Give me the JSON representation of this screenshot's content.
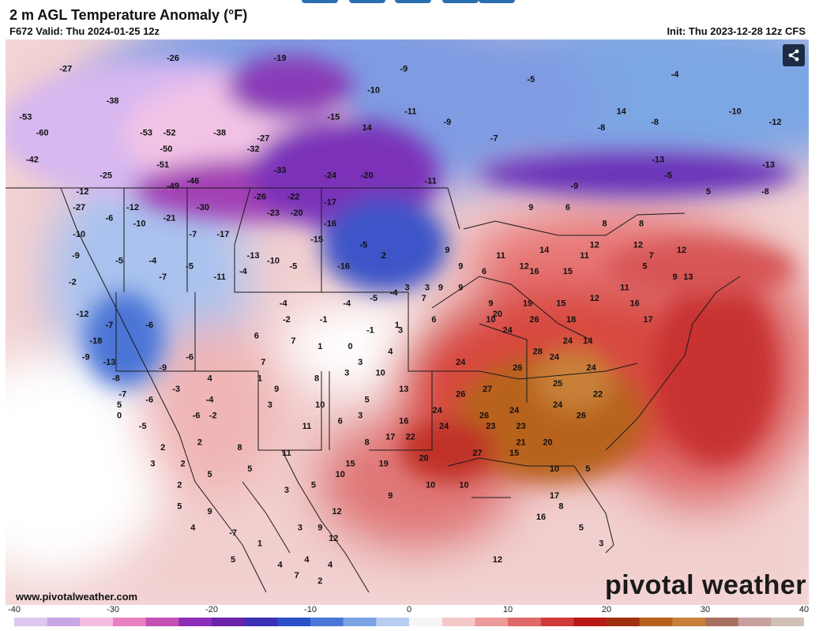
{
  "header": {
    "title": "2 m AGL Temperature Anomaly (°F)",
    "valid": "F672 Valid: Thu 2024-01-25 12z",
    "init": "Init: Thu 2023-12-28 12z CFS"
  },
  "footer": {
    "site": "www.pivotalweather.com",
    "brand": "pivotal weather"
  },
  "share_icon": "share-icon",
  "colorbar": {
    "min": -40,
    "max": 40,
    "tick_labels": [
      "-40",
      "-30",
      "-20",
      "-10",
      "0",
      "10",
      "20",
      "30",
      "40"
    ],
    "colors": [
      "#dcc8ef",
      "#c8a6e6",
      "#f2bde0",
      "#e87fc1",
      "#c64fb4",
      "#8c2fb8",
      "#6a22a8",
      "#3b2fb6",
      "#2c50c8",
      "#4a77d8",
      "#7da3e6",
      "#b7cdf2",
      "#f7f4f4",
      "#f4c8c8",
      "#ec9a9a",
      "#e06a6a",
      "#d23a3a",
      "#b81818",
      "#a03010",
      "#b8601c",
      "#c8803a",
      "#a87060",
      "#c8a0a0",
      "#d0c0b8"
    ]
  },
  "anomaly_labels": [
    {
      "t": "-27",
      "x": -126,
      "y": 50
    },
    {
      "t": "-53",
      "x": -132,
      "y": 45.5
    },
    {
      "t": "-60",
      "x": -129.5,
      "y": 44
    },
    {
      "t": "-42",
      "x": -131,
      "y": 41.5
    },
    {
      "t": "-38",
      "x": -119,
      "y": 47
    },
    {
      "t": "-26",
      "x": -110,
      "y": 51
    },
    {
      "t": "-53",
      "x": -114,
      "y": 44
    },
    {
      "t": "-52",
      "x": -110.5,
      "y": 44
    },
    {
      "t": "-50",
      "x": -111,
      "y": 42.5
    },
    {
      "t": "-51",
      "x": -111.5,
      "y": 41
    },
    {
      "t": "-49",
      "x": -110,
      "y": 39
    },
    {
      "t": "-46",
      "x": -107,
      "y": 39.5
    },
    {
      "t": "-25",
      "x": -120,
      "y": 40
    },
    {
      "t": "-38",
      "x": -103,
      "y": 44
    },
    {
      "t": "-27",
      "x": -96.5,
      "y": 43.5
    },
    {
      "t": "-32",
      "x": -98,
      "y": 42.5
    },
    {
      "t": "-33",
      "x": -94,
      "y": 40.5
    },
    {
      "t": "-19",
      "x": -94,
      "y": 51
    },
    {
      "t": "-24",
      "x": -86.5,
      "y": 40
    },
    {
      "t": "-20",
      "x": -81,
      "y": 40
    },
    {
      "t": "-15",
      "x": -86,
      "y": 45.5
    },
    {
      "t": "14",
      "x": -81,
      "y": 44.5
    },
    {
      "t": "-10",
      "x": -80,
      "y": 48
    },
    {
      "t": "-9",
      "x": -75.5,
      "y": 50
    },
    {
      "t": "-11",
      "x": -74.5,
      "y": 46
    },
    {
      "t": "-9",
      "x": -69,
      "y": 45
    },
    {
      "t": "-7",
      "x": -62,
      "y": 43.5
    },
    {
      "t": "-5",
      "x": -56.5,
      "y": 49
    },
    {
      "t": "-11",
      "x": -71.5,
      "y": 39.5
    },
    {
      "t": "-8",
      "x": -46,
      "y": 44.5
    },
    {
      "t": "-9",
      "x": -50,
      "y": 39
    },
    {
      "t": "-4",
      "x": -35,
      "y": 49.5
    },
    {
      "t": "-10",
      "x": -26,
      "y": 46
    },
    {
      "t": "-12",
      "x": -20,
      "y": 45
    },
    {
      "t": "-13",
      "x": -21,
      "y": 41
    },
    {
      "t": "-13",
      "x": -37.5,
      "y": 41.5
    },
    {
      "t": "14",
      "x": -43,
      "y": 46
    },
    {
      "t": "-8",
      "x": -38,
      "y": 45
    },
    {
      "t": "-5",
      "x": -36,
      "y": 40
    },
    {
      "t": "5",
      "x": -30,
      "y": 38.5
    },
    {
      "t": "-8",
      "x": -21.5,
      "y": 38.5
    },
    {
      "t": "-12",
      "x": -123.5,
      "y": 38.5
    },
    {
      "t": "-27",
      "x": -124,
      "y": 37
    },
    {
      "t": "-12",
      "x": -116,
      "y": 37
    },
    {
      "t": "-6",
      "x": -119.5,
      "y": 36
    },
    {
      "t": "-10",
      "x": -115,
      "y": 35.5
    },
    {
      "t": "-21",
      "x": -110.5,
      "y": 36
    },
    {
      "t": "-30",
      "x": -105.5,
      "y": 37
    },
    {
      "t": "-26",
      "x": -97,
      "y": 38
    },
    {
      "t": "-22",
      "x": -92,
      "y": 38
    },
    {
      "t": "-23",
      "x": -95,
      "y": 36.5
    },
    {
      "t": "-20",
      "x": -91.5,
      "y": 36.5
    },
    {
      "t": "-17",
      "x": -86.5,
      "y": 37.5
    },
    {
      "t": "-16",
      "x": -86.5,
      "y": 35.5
    },
    {
      "t": "-10",
      "x": -124,
      "y": 34.5
    },
    {
      "t": "-7",
      "x": -107,
      "y": 34.5
    },
    {
      "t": "-17",
      "x": -102.5,
      "y": 34.5
    },
    {
      "t": "-15",
      "x": -88.5,
      "y": 34
    },
    {
      "t": "-9",
      "x": -124.5,
      "y": 32.5
    },
    {
      "t": "-5",
      "x": -118,
      "y": 32
    },
    {
      "t": "-4",
      "x": -113,
      "y": 32
    },
    {
      "t": "-5",
      "x": -107.5,
      "y": 31.5
    },
    {
      "t": "-7",
      "x": -111.5,
      "y": 30.5
    },
    {
      "t": "-13",
      "x": -98,
      "y": 32.5
    },
    {
      "t": "-10",
      "x": -95,
      "y": 32
    },
    {
      "t": "-5",
      "x": -92,
      "y": 31.5
    },
    {
      "t": "-16",
      "x": -84.5,
      "y": 31.5
    },
    {
      "t": "-5",
      "x": -81.5,
      "y": 33.5
    },
    {
      "t": "2",
      "x": -78.5,
      "y": 32.5
    },
    {
      "t": "-2",
      "x": -125,
      "y": 30
    },
    {
      "t": "-11",
      "x": -103,
      "y": 30.5
    },
    {
      "t": "-4",
      "x": -99.5,
      "y": 31
    },
    {
      "t": "-12",
      "x": -123.5,
      "y": 27
    },
    {
      "t": "-7",
      "x": -119.5,
      "y": 26
    },
    {
      "t": "-6",
      "x": -113.5,
      "y": 26
    },
    {
      "t": "-18",
      "x": -121.5,
      "y": 24.5
    },
    {
      "t": "-9",
      "x": -123,
      "y": 23
    },
    {
      "t": "-13",
      "x": -119.5,
      "y": 22.5
    },
    {
      "t": "-8",
      "x": -118.5,
      "y": 21
    },
    {
      "t": "-7",
      "x": -117.5,
      "y": 19.5
    },
    {
      "t": "-6",
      "x": -113.5,
      "y": 19
    },
    {
      "t": "-6",
      "x": -107.5,
      "y": 23
    },
    {
      "t": "-9",
      "x": -111.5,
      "y": 22
    },
    {
      "t": "-3",
      "x": -109.5,
      "y": 20
    },
    {
      "t": "-4",
      "x": -104.5,
      "y": 19
    },
    {
      "t": "-2",
      "x": -104,
      "y": 17.5
    },
    {
      "t": "-6",
      "x": -106.5,
      "y": 17.5
    },
    {
      "t": "6",
      "x": -97.5,
      "y": 25
    },
    {
      "t": "-2",
      "x": -93,
      "y": 26.5
    },
    {
      "t": "7",
      "x": -92,
      "y": 24.5
    },
    {
      "t": "-1",
      "x": -87.5,
      "y": 26.5
    },
    {
      "t": "-4",
      "x": -93.5,
      "y": 28
    },
    {
      "t": "-4",
      "x": -84,
      "y": 28
    },
    {
      "t": "-5",
      "x": -80,
      "y": 28.5
    },
    {
      "t": "-4",
      "x": -77,
      "y": 29
    },
    {
      "t": "3",
      "x": -75,
      "y": 29.5
    },
    {
      "t": "-1",
      "x": -80.5,
      "y": 25.5
    },
    {
      "t": "3",
      "x": -76,
      "y": 25.5
    },
    {
      "t": "1",
      "x": -76.5,
      "y": 26
    },
    {
      "t": "1",
      "x": -88,
      "y": 24
    },
    {
      "t": "0",
      "x": -83.5,
      "y": 24
    },
    {
      "t": "4",
      "x": -77.5,
      "y": 23.5
    },
    {
      "t": "7",
      "x": -96.5,
      "y": 22.5
    },
    {
      "t": "4",
      "x": -104.5,
      "y": 21
    },
    {
      "t": "1",
      "x": -97,
      "y": 21
    },
    {
      "t": "9",
      "x": -94.5,
      "y": 20
    },
    {
      "t": "3",
      "x": -95.5,
      "y": 18.5
    },
    {
      "t": "8",
      "x": -88.5,
      "y": 21
    },
    {
      "t": "3",
      "x": -84,
      "y": 21.5
    },
    {
      "t": "3",
      "x": -82,
      "y": 22.5
    },
    {
      "t": "10",
      "x": -79,
      "y": 21.5
    },
    {
      "t": "13",
      "x": -75.5,
      "y": 20
    },
    {
      "t": "10",
      "x": -88,
      "y": 18.5
    },
    {
      "t": "6",
      "x": -85,
      "y": 17
    },
    {
      "t": "3",
      "x": -82,
      "y": 17.5
    },
    {
      "t": "5",
      "x": -81,
      "y": 19
    },
    {
      "t": "11",
      "x": -90,
      "y": 16.5
    },
    {
      "t": "8",
      "x": -81,
      "y": 15
    },
    {
      "t": "11",
      "x": -93,
      "y": 14
    },
    {
      "t": "8",
      "x": -100,
      "y": 14.5
    },
    {
      "t": "2",
      "x": -106,
      "y": 15
    },
    {
      "t": "2",
      "x": -108.5,
      "y": 13
    },
    {
      "t": "5",
      "x": -98.5,
      "y": 12.5
    },
    {
      "t": "17",
      "x": -77.5,
      "y": 15.5
    },
    {
      "t": "22",
      "x": -74.5,
      "y": 15.5
    },
    {
      "t": "16",
      "x": -75.5,
      "y": 17
    },
    {
      "t": "15",
      "x": -83.5,
      "y": 13
    },
    {
      "t": "19",
      "x": -78.5,
      "y": 13
    },
    {
      "t": "20",
      "x": -72.5,
      "y": 13.5
    },
    {
      "t": "24",
      "x": -70.5,
      "y": 18
    },
    {
      "t": "24",
      "x": -69.5,
      "y": 16.5
    },
    {
      "t": "26",
      "x": -67,
      "y": 19.5
    },
    {
      "t": "27",
      "x": -63,
      "y": 20
    },
    {
      "t": "26",
      "x": -63.5,
      "y": 17.5
    },
    {
      "t": "23",
      "x": -62.5,
      "y": 16.5
    },
    {
      "t": "24",
      "x": -59,
      "y": 18
    },
    {
      "t": "23",
      "x": -58,
      "y": 16.5
    },
    {
      "t": "21",
      "x": -58,
      "y": 15
    },
    {
      "t": "25",
      "x": -52.5,
      "y": 20.5
    },
    {
      "t": "24",
      "x": -52.5,
      "y": 18.5
    },
    {
      "t": "26",
      "x": -49,
      "y": 17.5
    },
    {
      "t": "22",
      "x": -46.5,
      "y": 19.5
    },
    {
      "t": "24",
      "x": -67,
      "y": 22.5
    },
    {
      "t": "26",
      "x": -58.5,
      "y": 22
    },
    {
      "t": "28",
      "x": -55.5,
      "y": 23.5
    },
    {
      "t": "24",
      "x": -53,
      "y": 23
    },
    {
      "t": "24",
      "x": -47.5,
      "y": 22
    },
    {
      "t": "24",
      "x": -60,
      "y": 25.5
    },
    {
      "t": "26",
      "x": -56,
      "y": 26.5
    },
    {
      "t": "24",
      "x": -51,
      "y": 24.5
    },
    {
      "t": "18",
      "x": -50.5,
      "y": 26.5
    },
    {
      "t": "14",
      "x": -48,
      "y": 24.5
    },
    {
      "t": "20",
      "x": -61.5,
      "y": 27
    },
    {
      "t": "19",
      "x": -57,
      "y": 28
    },
    {
      "t": "16",
      "x": -56,
      "y": 31
    },
    {
      "t": "14",
      "x": -54.5,
      "y": 33
    },
    {
      "t": "15",
      "x": -52,
      "y": 28
    },
    {
      "t": "12",
      "x": -47,
      "y": 28.5
    },
    {
      "t": "11",
      "x": -42.5,
      "y": 29.5
    },
    {
      "t": "16",
      "x": -41,
      "y": 28
    },
    {
      "t": "17",
      "x": -39,
      "y": 26.5
    },
    {
      "t": "15",
      "x": -51,
      "y": 31
    },
    {
      "t": "12",
      "x": -57.5,
      "y": 31.5
    },
    {
      "t": "11",
      "x": -61,
      "y": 32.5
    },
    {
      "t": "11",
      "x": -48.5,
      "y": 32.5
    },
    {
      "t": "12",
      "x": -47,
      "y": 33.5
    },
    {
      "t": "5",
      "x": -39.5,
      "y": 31.5
    },
    {
      "t": "7",
      "x": -38.5,
      "y": 32.5
    },
    {
      "t": "12",
      "x": -34,
      "y": 33
    },
    {
      "t": "9",
      "x": -35,
      "y": 30.5
    },
    {
      "t": "13",
      "x": -33,
      "y": 30.5
    },
    {
      "t": "8",
      "x": -45.5,
      "y": 35.5
    },
    {
      "t": "8",
      "x": -40,
      "y": 35.5
    },
    {
      "t": "9",
      "x": -56.5,
      "y": 37
    },
    {
      "t": "6",
      "x": -51,
      "y": 37
    },
    {
      "t": "9",
      "x": -69,
      "y": 33
    },
    {
      "t": "9",
      "x": -67,
      "y": 31.5
    },
    {
      "t": "6",
      "x": -63.5,
      "y": 31
    },
    {
      "t": "9",
      "x": -70,
      "y": 29.5
    },
    {
      "t": "9",
      "x": -67,
      "y": 29.5
    },
    {
      "t": "7",
      "x": -72.5,
      "y": 28.5
    },
    {
      "t": "9",
      "x": -62.5,
      "y": 28
    },
    {
      "t": "10",
      "x": -62.5,
      "y": 26.5
    },
    {
      "t": "6",
      "x": -71,
      "y": 26.5
    },
    {
      "t": "3",
      "x": -72,
      "y": 29.5
    },
    {
      "t": "12",
      "x": -40.5,
      "y": 33.5
    },
    {
      "t": "10",
      "x": -53,
      "y": 12.5
    },
    {
      "t": "10",
      "x": -66.5,
      "y": 11
    },
    {
      "t": "10",
      "x": -71.5,
      "y": 11
    },
    {
      "t": "9",
      "x": -77.5,
      "y": 10
    },
    {
      "t": "5",
      "x": -48,
      "y": 12.5
    },
    {
      "t": "17",
      "x": -53,
      "y": 10
    },
    {
      "t": "16",
      "x": -55,
      "y": 8
    },
    {
      "t": "8",
      "x": -52,
      "y": 9
    },
    {
      "t": "27",
      "x": -64.5,
      "y": 14
    },
    {
      "t": "15",
      "x": -59,
      "y": 14
    },
    {
      "t": "20",
      "x": -54,
      "y": 15
    },
    {
      "t": "10",
      "x": -85,
      "y": 12
    },
    {
      "t": "5",
      "x": -89,
      "y": 11
    },
    {
      "t": "3",
      "x": -93,
      "y": 10.5
    },
    {
      "t": "12",
      "x": -85.5,
      "y": 8.5
    },
    {
      "t": "12",
      "x": -86,
      "y": 6
    },
    {
      "t": "3",
      "x": -91,
      "y": 7
    },
    {
      "t": "9",
      "x": -88,
      "y": 7
    },
    {
      "t": "4",
      "x": -90,
      "y": 4
    },
    {
      "t": "4",
      "x": -86.5,
      "y": 3.5
    },
    {
      "t": "2",
      "x": -109,
      "y": 11
    },
    {
      "t": "5",
      "x": -109,
      "y": 9
    },
    {
      "t": "9",
      "x": -104.5,
      "y": 8.5
    },
    {
      "t": "4",
      "x": -107,
      "y": 7
    },
    {
      "t": "-7",
      "x": -101,
      "y": 6.5
    },
    {
      "t": "5",
      "x": -101,
      "y": 4
    },
    {
      "t": "1",
      "x": -97,
      "y": 5.5
    },
    {
      "t": "4",
      "x": -94,
      "y": 3.5
    },
    {
      "t": "7",
      "x": -91.5,
      "y": 2.5
    },
    {
      "t": "2",
      "x": -88,
      "y": 2
    },
    {
      "t": "12",
      "x": -61.5,
      "y": 4
    },
    {
      "t": "5",
      "x": -49,
      "y": 7
    },
    {
      "t": "3",
      "x": -46,
      "y": 5.5
    },
    {
      "t": "3",
      "x": -113,
      "y": 13
    },
    {
      "t": "2",
      "x": -111.5,
      "y": 14.5
    },
    {
      "t": "5",
      "x": -104.5,
      "y": 12
    },
    {
      "t": "0",
      "x": -118,
      "y": 17.5
    },
    {
      "t": "-5",
      "x": -114.5,
      "y": 16.5
    },
    {
      "t": "5",
      "x": -118,
      "y": 18.5
    }
  ]
}
